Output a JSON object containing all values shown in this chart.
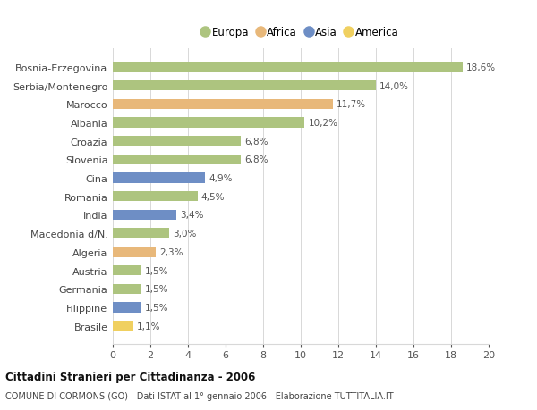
{
  "categories": [
    "Bosnia-Erzegovina",
    "Serbia/Montenegro",
    "Marocco",
    "Albania",
    "Croazia",
    "Slovenia",
    "Cina",
    "Romania",
    "India",
    "Macedonia d/N.",
    "Algeria",
    "Austria",
    "Germania",
    "Filippine",
    "Brasile"
  ],
  "values": [
    18.6,
    14.0,
    11.7,
    10.2,
    6.8,
    6.8,
    4.9,
    4.5,
    3.4,
    3.0,
    2.3,
    1.5,
    1.5,
    1.5,
    1.1
  ],
  "labels": [
    "18,6%",
    "14,0%",
    "11,7%",
    "10,2%",
    "6,8%",
    "6,8%",
    "4,9%",
    "4,5%",
    "3,4%",
    "3,0%",
    "2,3%",
    "1,5%",
    "1,5%",
    "1,5%",
    "1,1%"
  ],
  "continent": [
    "Europa",
    "Europa",
    "Africa",
    "Europa",
    "Europa",
    "Europa",
    "Asia",
    "Europa",
    "Asia",
    "Europa",
    "Africa",
    "Europa",
    "Europa",
    "Asia",
    "America"
  ],
  "colors": {
    "Europa": "#adc47f",
    "Africa": "#e8b87a",
    "Asia": "#6e8ec5",
    "America": "#f0d060"
  },
  "legend_order": [
    "Europa",
    "Africa",
    "Asia",
    "America"
  ],
  "xlim": [
    0,
    20
  ],
  "xticks": [
    0,
    2,
    4,
    6,
    8,
    10,
    12,
    14,
    16,
    18,
    20
  ],
  "title": "Cittadini Stranieri per Cittadinanza - 2006",
  "subtitle": "COMUNE DI CORMONS (GO) - Dati ISTAT al 1° gennaio 2006 - Elaborazione TUTTITALIA.IT",
  "background_color": "#ffffff",
  "grid_color": "#d8d8d8",
  "bar_height": 0.55
}
